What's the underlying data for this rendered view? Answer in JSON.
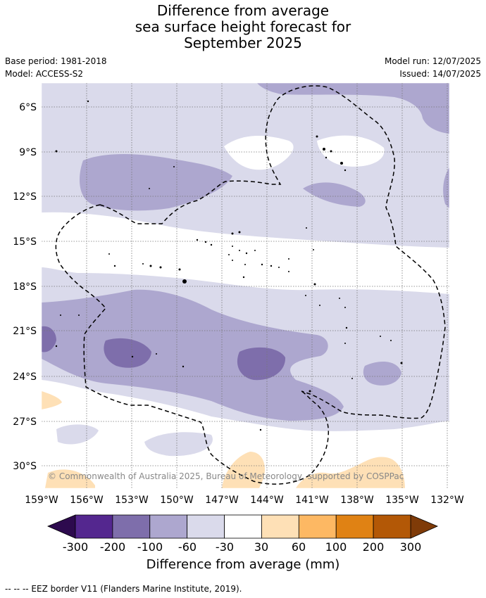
{
  "title": {
    "line1": "Difference from average",
    "line2": "sea surface height forecast for",
    "line3": "September 2025"
  },
  "meta": {
    "base_period": "Base period: 1981-2018",
    "model": "Model: ACCESS-S2",
    "model_run": "Model run: 12/07/2025",
    "issued": "Issued: 14/07/2025"
  },
  "map": {
    "lat_labels": [
      "6°S",
      "9°S",
      "12°S",
      "15°S",
      "18°S",
      "21°S",
      "24°S",
      "27°S",
      "30°S"
    ],
    "lon_labels": [
      "159°W",
      "156°W",
      "153°W",
      "150°W",
      "147°W",
      "144°W",
      "141°W",
      "138°W",
      "135°W",
      "132°W"
    ],
    "copyright": "© Commonwealth of Australia 2025, Bureau of Meteorology, supported by COSPPac"
  },
  "colorbar": {
    "ticks": [
      "-300",
      "-200",
      "-100",
      "-60",
      "-30",
      "30",
      "60",
      "100",
      "200",
      "300"
    ],
    "colors": [
      "#54278f",
      "#7e6eab",
      "#ada7cf",
      "#dadaeb",
      "#ffffff",
      "#fee0b6",
      "#fdb863",
      "#e08214",
      "#b35806"
    ],
    "under_color": "#2d0a4e",
    "over_color": "#7f3b08",
    "label": "Difference from average (mm)"
  },
  "footer": {
    "eez_note": "--  --  -- EEZ border V11 (Flanders Marine Institute, 2019)."
  }
}
